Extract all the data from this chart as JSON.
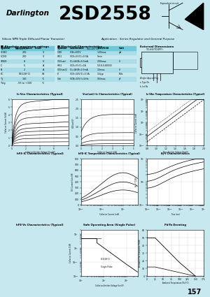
{
  "bg_color": "#c8e8f0",
  "header_bg": "#00c8e0",
  "title_darlington": "Darlington",
  "title_part": "2SD2558",
  "subtitle": "Silicon NPN Triple Diffused Planar Transistor",
  "application": "Application : Series Regulator and General Purpose",
  "ext_dim": "External Dimensions TO-66(TO3PF)",
  "page_num": "157",
  "abs_title": "■ Absolute maximum ratings",
  "elec_title": "■ Electrical Characteristics",
  "chart_titles": [
    "Ic-Vce Characteristics (Typical)",
    "Vce(sat)-Ic Characteristics (Typical)",
    "Ic-Vbe Temperature Characteristics (Typical)",
    "hFE-IC Characteristics (Typical)",
    "hFE-IC Temperature Characteristics (Typical)",
    "θj-t Characteristics",
    "hFE-Vs Characteristics (Typical)",
    "Safe Operating Area (Single Pulse)",
    "Pd-Ta Derating"
  ],
  "abs_headers": [
    "Symbol",
    "Unit(rations)",
    "Limit"
  ],
  "abs_rows": [
    [
      "VCBO",
      "200",
      "V"
    ],
    [
      "VCEO",
      "200",
      "V"
    ],
    [
      "VEBO",
      "8",
      "V"
    ],
    [
      "IC",
      "5",
      "A"
    ],
    [
      "IB",
      "2",
      "A"
    ],
    [
      "PC",
      "50(100°C)",
      "W"
    ],
    [
      "Tj",
      "150",
      "°C"
    ],
    [
      "Tstg",
      "-55 to +150",
      "°C"
    ]
  ],
  "elec_headers": [
    "Symbol",
    "Conditions",
    "2SD2558",
    "Unit"
  ],
  "elec_rows": [
    [
      "ICBO",
      "VCB=200V",
      "1.00max",
      "μA"
    ],
    [
      "hFE1",
      "VCE=5V IC=0.5A",
      "5min",
      ""
    ],
    [
      "VCE(sat)",
      "IC=5A IB=0.5mA",
      "2.00max",
      "V"
    ],
    [
      "hFE2",
      "VCE=5V IC=1A",
      "5.0:8.0:800(0)",
      ""
    ],
    [
      "VCE(sat)2",
      "IC=1A IB=0.5mA",
      "1.0max",
      "V"
    ],
    [
      "fT",
      "VCE=10V IC=0.5A",
      "1.5typ",
      "MHz"
    ],
    [
      "Cob",
      "VCB=10V f=1kHz",
      "160max",
      "pF"
    ]
  ]
}
